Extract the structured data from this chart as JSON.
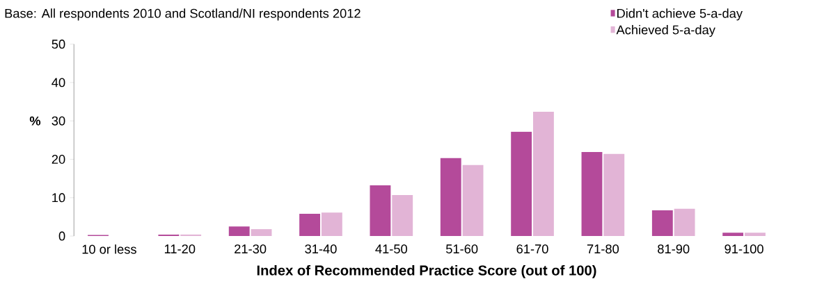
{
  "chart_data": {
    "type": "bar",
    "subtitle": "Base: All respondents 2010 and Scotland/NI respondents 2012",
    "xlabel": "Index of Recommended Practice Score (out of 100)",
    "ylabel": "%",
    "categories": [
      "10 or less",
      "11-20",
      "21-30",
      "31-40",
      "41-50",
      "51-60",
      "61-70",
      "71-80",
      "81-90",
      "91-100"
    ],
    "series": [
      {
        "name": "Didn't achieve 5-a-day",
        "color": "#b44a9a",
        "values": [
          0.3,
          0.4,
          2.5,
          5.8,
          13.2,
          20.3,
          27.2,
          21.9,
          6.7,
          0.9
        ]
      },
      {
        "name": "Achieved 5-a-day",
        "color": "#e2b4d6",
        "values": [
          0,
          0.4,
          1.8,
          6.1,
          10.7,
          18.5,
          32.4,
          21.4,
          7.1,
          0.9
        ]
      }
    ],
    "ylim": [
      0,
      50
    ],
    "yticks": [
      0,
      10,
      20,
      30,
      40,
      50
    ],
    "legend": "top right",
    "grid": false
  }
}
